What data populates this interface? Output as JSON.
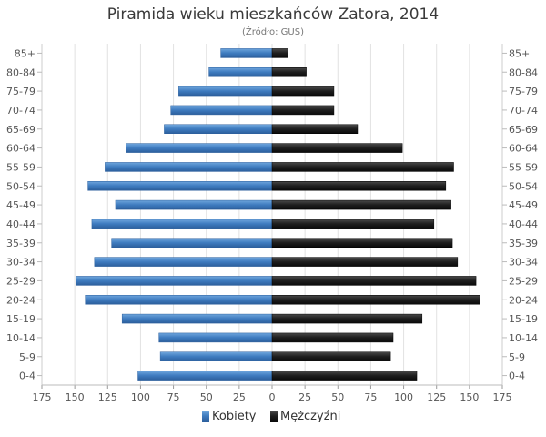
{
  "chart_data": {
    "type": "bar",
    "orientation": "horizontal",
    "layout": "population-pyramid",
    "title": "Piramida wieku mieszkańców Zatora, 2014",
    "subtitle": "(Źródło: GUS)",
    "categories": [
      "85+",
      "80-84",
      "75-79",
      "70-74",
      "65-69",
      "60-64",
      "55-59",
      "50-54",
      "45-49",
      "40-44",
      "35-39",
      "30-34",
      "25-29",
      "20-24",
      "15-19",
      "10-14",
      "5-9",
      "0-4"
    ],
    "series": [
      {
        "name": "Kobiety",
        "side": "left",
        "color": "#3e7bbf",
        "values": [
          39,
          48,
          71,
          77,
          82,
          111,
          127,
          140,
          119,
          137,
          122,
          135,
          149,
          142,
          114,
          86,
          85,
          102
        ]
      },
      {
        "name": "Mężczyźni",
        "side": "right",
        "color": "#1e1e1e",
        "values": [
          12,
          26,
          47,
          47,
          65,
          99,
          138,
          132,
          136,
          123,
          137,
          141,
          155,
          158,
          114,
          92,
          90,
          110
        ]
      }
    ],
    "x_ticks": [
      "175",
      "150",
      "125",
      "100",
      "75",
      "50",
      "25",
      "0",
      "25",
      "50",
      "75",
      "100",
      "125",
      "150",
      "175"
    ],
    "xlim": [
      -175,
      175
    ],
    "grid": true,
    "legend_position": "bottom-center"
  }
}
